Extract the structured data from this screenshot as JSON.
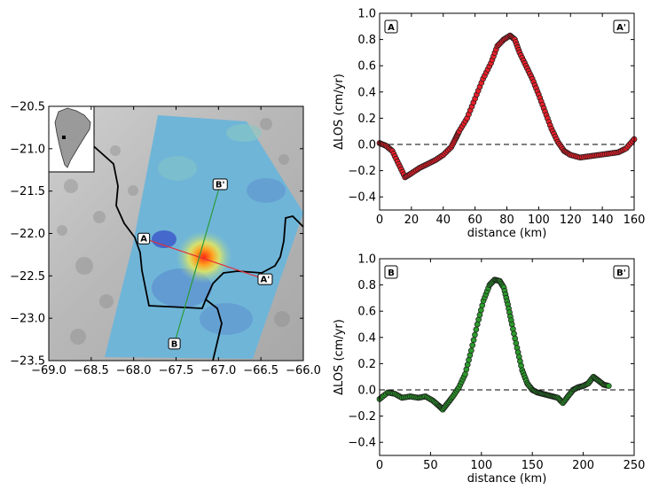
{
  "colors": {
    "profile_A": "#e8202a",
    "profile_B": "#2c9a2c",
    "track_AA": "#e0303a",
    "track_BB": "#2a9a3a",
    "border": "#000000",
    "deformation_high": "#e63a1a",
    "deformation_low": "#3a55c8",
    "insar_background": "#6fb5d8"
  },
  "chart_data": [
    {
      "type": "map",
      "xlim": [
        -69.0,
        -66.0
      ],
      "ylim": [
        -23.5,
        -20.5
      ],
      "x_ticks": [
        "−69.0",
        "−68.5",
        "−68.0",
        "−67.5",
        "−67.0",
        "−66.5",
        "−66.0"
      ],
      "y_ticks": [
        "−20.5",
        "−21.0",
        "−21.5",
        "−22.0",
        "−22.5",
        "−23.0",
        "−23.5"
      ],
      "x_tick_values": [
        -69.0,
        -68.5,
        -68.0,
        -67.5,
        -67.0,
        -66.5,
        -66.0
      ],
      "y_tick_values": [
        -20.5,
        -21.0,
        -21.5,
        -22.0,
        -22.5,
        -23.0,
        -23.5
      ],
      "profiles": [
        {
          "start_label": "A",
          "end_label": "A'",
          "start": [
            -67.88,
            -22.06
          ],
          "end": [
            -66.45,
            -22.54
          ],
          "color": "track_AA"
        },
        {
          "start_label": "B",
          "end_label": "B'",
          "start": [
            -67.52,
            -23.3
          ],
          "end": [
            -66.98,
            -21.42
          ],
          "color": "track_BB"
        }
      ],
      "deformation_center": [
        -67.18,
        -22.28
      ],
      "inset": "South America location map"
    },
    {
      "type": "scatter",
      "box_left": "A",
      "box_right": "A'",
      "xlabel": "distance (km)",
      "ylabel": "ΔLOS (cm/yr)",
      "xlim": [
        0,
        160
      ],
      "ylim": [
        -0.5,
        1.0
      ],
      "x_ticks": [
        "0",
        "20",
        "40",
        "60",
        "80",
        "100",
        "120",
        "140",
        "160"
      ],
      "y_ticks": [
        "−0.4",
        "−0.2",
        "0.0",
        "0.2",
        "0.4",
        "0.6",
        "0.8",
        "1.0"
      ],
      "x_tick_values": [
        0,
        20,
        40,
        60,
        80,
        100,
        120,
        140,
        160
      ],
      "y_tick_values": [
        -0.4,
        -0.2,
        0.0,
        0.2,
        0.4,
        0.6,
        0.8,
        1.0
      ],
      "reference_line": 0.0,
      "color": "profile_A",
      "profile": [
        [
          0,
          0.01
        ],
        [
          4,
          -0.01
        ],
        [
          8,
          -0.05
        ],
        [
          12,
          -0.15
        ],
        [
          16,
          -0.25
        ],
        [
          20,
          -0.22
        ],
        [
          25,
          -0.18
        ],
        [
          30,
          -0.15
        ],
        [
          35,
          -0.12
        ],
        [
          40,
          -0.08
        ],
        [
          45,
          -0.02
        ],
        [
          48,
          0.05
        ],
        [
          50,
          0.1
        ],
        [
          55,
          0.2
        ],
        [
          60,
          0.35
        ],
        [
          65,
          0.5
        ],
        [
          70,
          0.62
        ],
        [
          74,
          0.75
        ],
        [
          78,
          0.8
        ],
        [
          82,
          0.83
        ],
        [
          85,
          0.8
        ],
        [
          88,
          0.7
        ],
        [
          92,
          0.6
        ],
        [
          96,
          0.5
        ],
        [
          100,
          0.38
        ],
        [
          104,
          0.25
        ],
        [
          108,
          0.12
        ],
        [
          112,
          0.02
        ],
        [
          116,
          -0.05
        ],
        [
          120,
          -0.08
        ],
        [
          126,
          -0.1
        ],
        [
          132,
          -0.09
        ],
        [
          138,
          -0.08
        ],
        [
          144,
          -0.07
        ],
        [
          150,
          -0.06
        ],
        [
          155,
          -0.03
        ],
        [
          160,
          0.04
        ]
      ]
    },
    {
      "type": "scatter",
      "box_left": "B",
      "box_right": "B'",
      "xlabel": "distance (km)",
      "ylabel": "ΔLOS (cm/yr)",
      "xlim": [
        0,
        250
      ],
      "ylim": [
        -0.5,
        1.0
      ],
      "x_ticks": [
        "0",
        "50",
        "100",
        "150",
        "200",
        "250"
      ],
      "y_ticks": [
        "−0.4",
        "−0.2",
        "0.0",
        "0.2",
        "0.4",
        "0.6",
        "0.8",
        "1.0"
      ],
      "x_tick_values": [
        0,
        50,
        100,
        150,
        200,
        250
      ],
      "y_tick_values": [
        -0.4,
        -0.2,
        0.0,
        0.2,
        0.4,
        0.6,
        0.8,
        1.0
      ],
      "reference_line": 0.0,
      "color": "profile_B",
      "profile": [
        [
          0,
          -0.07
        ],
        [
          8,
          -0.02
        ],
        [
          15,
          -0.03
        ],
        [
          22,
          -0.06
        ],
        [
          30,
          -0.05
        ],
        [
          38,
          -0.06
        ],
        [
          45,
          -0.05
        ],
        [
          52,
          -0.08
        ],
        [
          58,
          -0.12
        ],
        [
          62,
          -0.15
        ],
        [
          67,
          -0.1
        ],
        [
          72,
          -0.05
        ],
        [
          78,
          0.02
        ],
        [
          84,
          0.12
        ],
        [
          90,
          0.3
        ],
        [
          96,
          0.5
        ],
        [
          102,
          0.68
        ],
        [
          108,
          0.8
        ],
        [
          113,
          0.84
        ],
        [
          118,
          0.83
        ],
        [
          122,
          0.78
        ],
        [
          126,
          0.65
        ],
        [
          130,
          0.5
        ],
        [
          135,
          0.32
        ],
        [
          140,
          0.15
        ],
        [
          145,
          0.05
        ],
        [
          150,
          0.0
        ],
        [
          155,
          -0.02
        ],
        [
          160,
          -0.03
        ],
        [
          165,
          -0.04
        ],
        [
          170,
          -0.05
        ],
        [
          175,
          -0.06
        ],
        [
          180,
          -0.1
        ],
        [
          185,
          -0.05
        ],
        [
          190,
          0.0
        ],
        [
          195,
          0.02
        ],
        [
          200,
          0.03
        ],
        [
          205,
          0.05
        ],
        [
          210,
          0.1
        ],
        [
          215,
          0.07
        ],
        [
          220,
          0.04
        ],
        [
          225,
          0.03
        ]
      ]
    }
  ]
}
